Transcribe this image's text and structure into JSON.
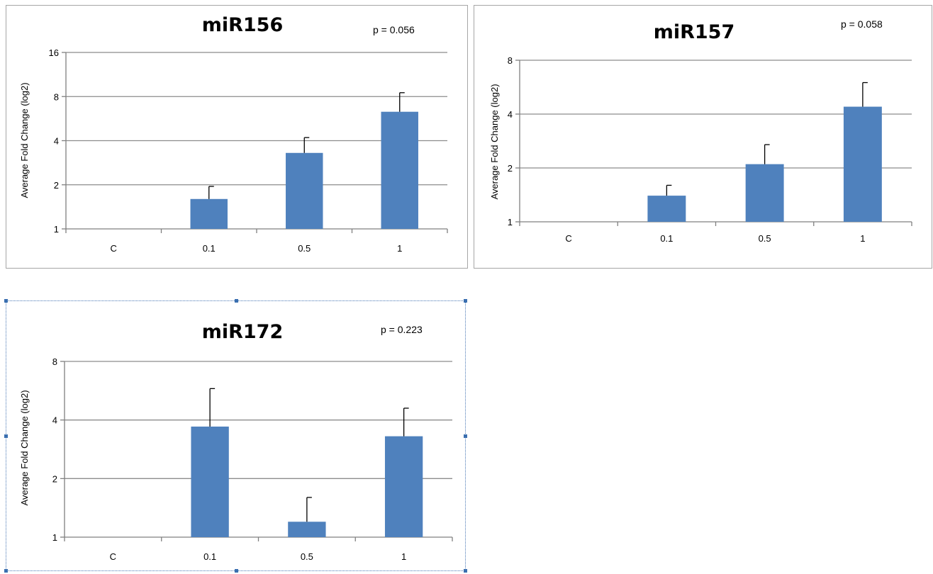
{
  "chart_data": [
    {
      "type": "bar",
      "title": "miR156",
      "annotation": "p = 0.056",
      "ylabel": "Average Fold Change (log2)",
      "xlabel": "",
      "y_scale": "log2",
      "ylim": [
        1,
        16
      ],
      "y_ticks": [
        "1",
        "2",
        "4",
        "8",
        "16"
      ],
      "categories": [
        "C",
        "0.1",
        "0.5",
        "1"
      ],
      "values": [
        1,
        1.6,
        3.3,
        6.3
      ],
      "error_upper": [
        null,
        1.95,
        4.2,
        8.5
      ],
      "bar_color": "#4f81bd",
      "grid": true
    },
    {
      "type": "bar",
      "title": "miR157",
      "annotation": "p = 0.058",
      "ylabel": "Average Fold Change (log2)",
      "xlabel": "",
      "y_scale": "log2",
      "ylim": [
        1,
        8
      ],
      "y_ticks": [
        "1",
        "2",
        "4",
        "8"
      ],
      "categories": [
        "C",
        "0.1",
        "0.5",
        "1"
      ],
      "values": [
        1,
        1.4,
        2.1,
        4.4
      ],
      "error_upper": [
        null,
        1.6,
        2.7,
        6.0
      ],
      "bar_color": "#4f81bd",
      "grid": true
    },
    {
      "type": "bar",
      "title": "miR172",
      "annotation": "p = 0.223",
      "ylabel": "Average Fold Change (log2)",
      "xlabel": "",
      "y_scale": "log2",
      "ylim": [
        1,
        8
      ],
      "y_ticks": [
        "1",
        "2",
        "4",
        "8"
      ],
      "categories": [
        "C",
        "0.1",
        "0.5",
        "1"
      ],
      "values": [
        1,
        3.7,
        1.2,
        3.3
      ],
      "error_upper": [
        null,
        5.8,
        1.6,
        4.6
      ],
      "bar_color": "#4f81bd",
      "grid": true
    }
  ]
}
